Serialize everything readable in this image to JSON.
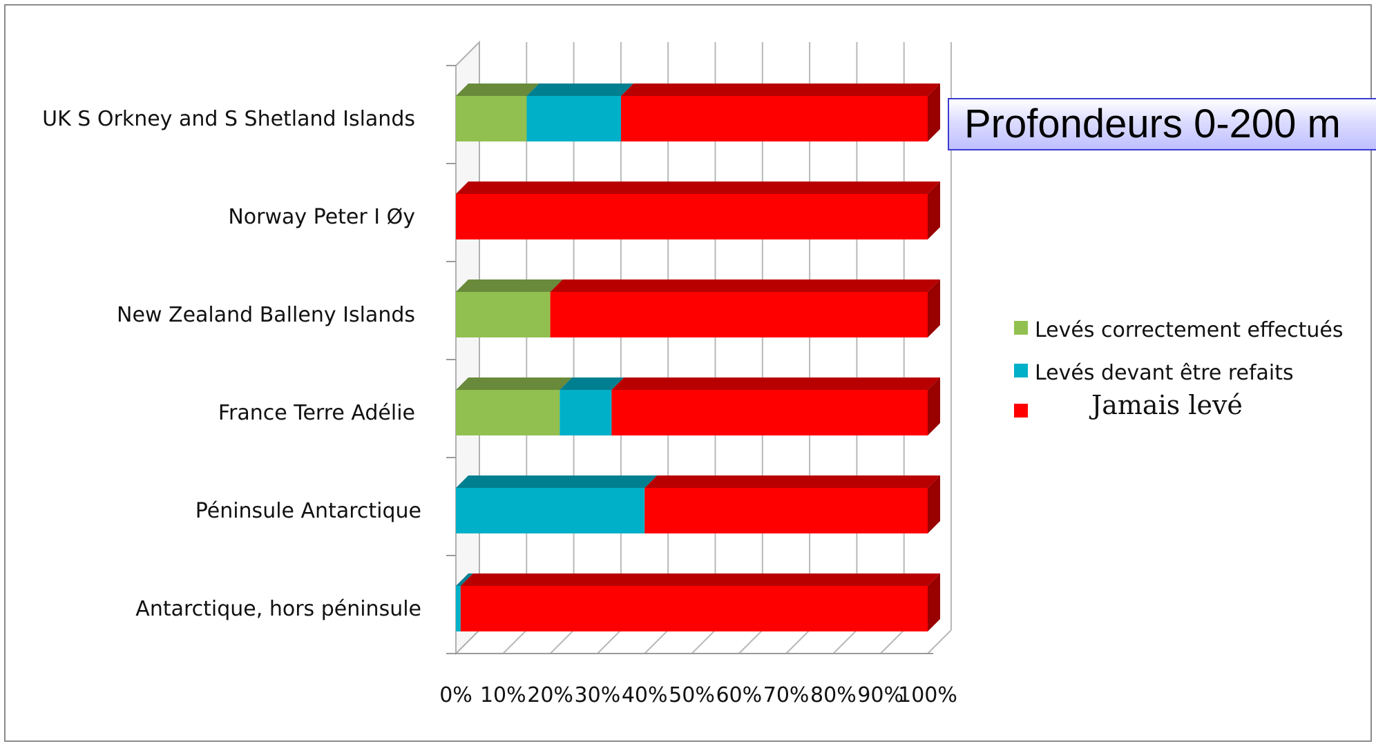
{
  "chart_data": {
    "type": "bar",
    "orientation": "horizontal",
    "stacked": "percent",
    "title": "Profondeurs 0-200 m",
    "categories": [
      "UK S Orkney and S Shetland Islands",
      "Norway Peter I Øy",
      "New Zealand Balleny Islands",
      "France Terre Adélie",
      "Péninsule Antarctique",
      "Antarctique, hors péninsule"
    ],
    "series": [
      {
        "name": "Levés correctement effectués",
        "color": "#92c050",
        "values": [
          15,
          0,
          20,
          22,
          0,
          0
        ]
      },
      {
        "name": "Levés devant être refaits",
        "color": "#00b0c8",
        "values": [
          20,
          0,
          0,
          11,
          40,
          1
        ]
      },
      {
        "name": "Jamais levé",
        "color": "#ff0000",
        "values": [
          65,
          100,
          80,
          67,
          60,
          99
        ]
      }
    ],
    "x_ticks": [
      "0%",
      "10%",
      "20%",
      "30%",
      "40%",
      "50%",
      "60%",
      "70%",
      "80%",
      "90%",
      "100%"
    ],
    "xlim": [
      0,
      100
    ],
    "grid": true,
    "legend": "right"
  }
}
